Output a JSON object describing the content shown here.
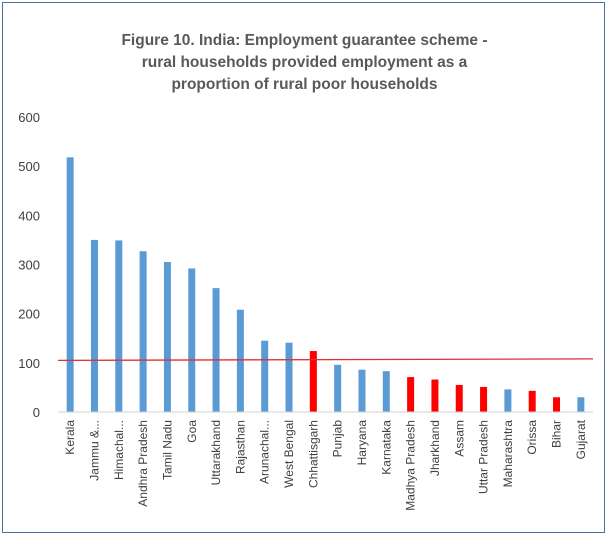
{
  "chart_data": {
    "type": "bar",
    "title_lines": [
      "Figure 10.  India: Employment guarantee scheme -",
      "rural households provided employment as a",
      "proportion of rural poor households"
    ],
    "categories": [
      "Kerala",
      "Jammu &...",
      "Himachal...",
      "Andhra Pradesh",
      "Tamil Nadu",
      "Goa",
      "Uttarakhand",
      "Rajasthan",
      "Arunachal...",
      "West Bengal",
      "Chhattisgarh",
      "Punjab",
      "Haryana",
      "Karnataka",
      "Madhya Pradesh",
      "Jharkhand",
      "Assam",
      "Uttar Pradesh",
      "Maharashtra",
      "Orissa",
      "Bihar",
      "Gujarat"
    ],
    "values": [
      518,
      350,
      349,
      327,
      305,
      292,
      252,
      208,
      145,
      141,
      124,
      96,
      86,
      83,
      71,
      66,
      55,
      51,
      46,
      43,
      30,
      30
    ],
    "highlighted": [
      false,
      false,
      false,
      false,
      false,
      false,
      false,
      false,
      false,
      false,
      true,
      false,
      false,
      false,
      true,
      true,
      true,
      true,
      false,
      true,
      true,
      false
    ],
    "yticks": [
      0,
      100,
      200,
      300,
      400,
      500,
      600
    ],
    "ylim": [
      0,
      600
    ],
    "reference_line": {
      "start": 105,
      "end": 108
    },
    "grid": false,
    "colors": {
      "bar": "#5b9bd5",
      "highlight": "#ff0000",
      "reference_line": "#e03030",
      "axis": "#d0d0d0",
      "text": "#404040"
    }
  }
}
